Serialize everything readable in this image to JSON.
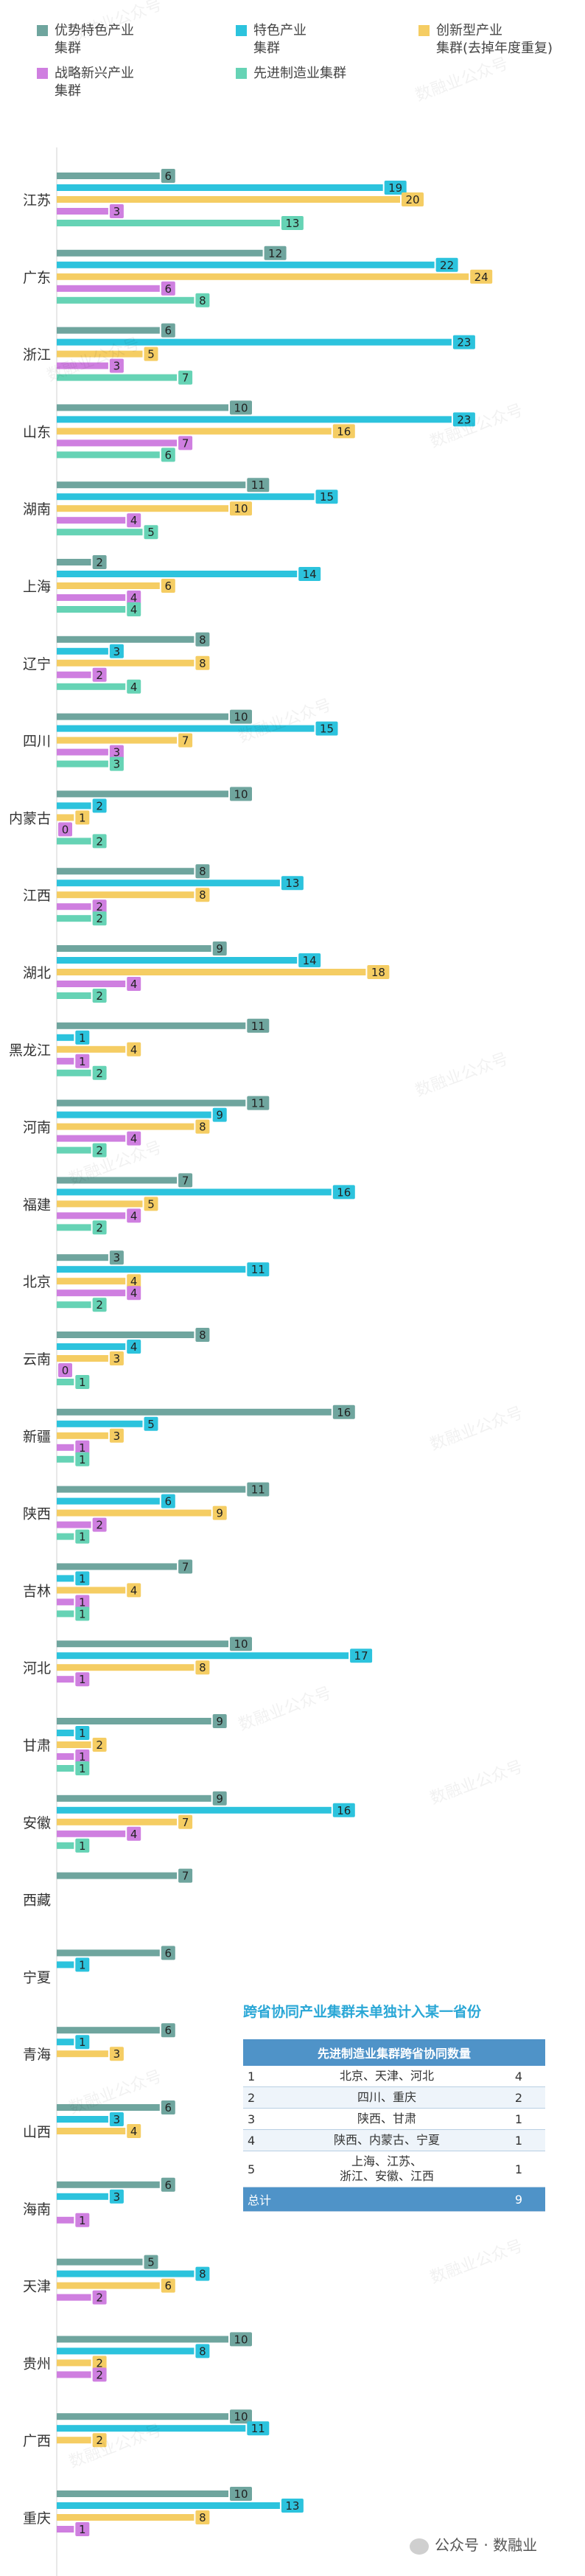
{
  "chart_data": {
    "type": "bar",
    "orientation": "horizontal",
    "legend": [
      {
        "key": "advantage",
        "lines": [
          "优势特色产业",
          "集群"
        ],
        "color": "#6fa59e"
      },
      {
        "key": "featured",
        "lines": [
          "特色产业",
          "集群"
        ],
        "color": "#2cc3dd"
      },
      {
        "key": "innovative",
        "lines": [
          "创新型产业",
          "集群(去掉年度重复)"
        ],
        "color": "#f5cd63"
      },
      {
        "key": "strategic",
        "lines": [
          "战略新兴产业",
          "集群"
        ],
        "color": "#cf7fe0"
      },
      {
        "key": "advanced",
        "lines": [
          "先进制造业集群"
        ],
        "color": "#66d3b5"
      }
    ],
    "categories": [
      "江苏",
      "广东",
      "浙江",
      "山东",
      "湖南",
      "上海",
      "辽宁",
      "四川",
      "内蒙古",
      "江西",
      "湖北",
      "黑龙江",
      "河南",
      "福建",
      "北京",
      "云南",
      "新疆",
      "陕西",
      "吉林",
      "河北",
      "甘肃",
      "安徽",
      "西藏",
      "宁夏",
      "青海",
      "山西",
      "海南",
      "天津",
      "贵州",
      "广西",
      "重庆"
    ],
    "series": [
      {
        "name": "优势特色产业集群",
        "color": "#6fa59e",
        "values": [
          6,
          12,
          6,
          10,
          11,
          2,
          8,
          10,
          10,
          8,
          9,
          11,
          11,
          7,
          3,
          8,
          16,
          11,
          7,
          10,
          9,
          9,
          7,
          6,
          6,
          6,
          6,
          5,
          10,
          10,
          10
        ]
      },
      {
        "name": "特色产业集群",
        "color": "#2cc3dd",
        "values": [
          19,
          22,
          23,
          23,
          15,
          14,
          3,
          15,
          2,
          13,
          14,
          1,
          9,
          16,
          11,
          4,
          5,
          6,
          1,
          17,
          1,
          16,
          null,
          1,
          1,
          3,
          3,
          8,
          8,
          11,
          13
        ]
      },
      {
        "name": "创新型产业集群(去掉年度重复)",
        "color": "#f5cd63",
        "values": [
          20,
          24,
          5,
          16,
          10,
          6,
          8,
          7,
          1,
          8,
          18,
          4,
          8,
          5,
          4,
          3,
          3,
          9,
          4,
          8,
          2,
          7,
          null,
          null,
          3,
          4,
          null,
          6,
          2,
          2,
          8
        ]
      },
      {
        "name": "战略新兴产业集群",
        "color": "#cf7fe0",
        "values": [
          3,
          6,
          3,
          7,
          4,
          4,
          2,
          3,
          0,
          2,
          4,
          1,
          4,
          4,
          4,
          0,
          1,
          2,
          1,
          1,
          1,
          4,
          null,
          null,
          null,
          null,
          1,
          2,
          2,
          null,
          1
        ]
      },
      {
        "name": "先进制造业集群",
        "color": "#66d3b5",
        "values": [
          13,
          8,
          7,
          6,
          5,
          4,
          4,
          3,
          2,
          2,
          2,
          2,
          2,
          2,
          2,
          1,
          1,
          1,
          1,
          null,
          1,
          1,
          null,
          null,
          null,
          null,
          null,
          null,
          null,
          null,
          null
        ]
      }
    ]
  },
  "note": "跨省协同产业集群未单独计入某一省份",
  "table": {
    "title": "先进制造业集群跨省协同数量",
    "rows": [
      {
        "no": "1",
        "provinces": [
          "北京、天津、河北"
        ],
        "count": "4"
      },
      {
        "no": "2",
        "provinces": [
          "四川、重庆"
        ],
        "count": "2"
      },
      {
        "no": "3",
        "provinces": [
          "陕西、甘肃"
        ],
        "count": "1"
      },
      {
        "no": "4",
        "provinces": [
          "陕西、内蒙古、宁夏"
        ],
        "count": "1"
      },
      {
        "no": "5",
        "provinces": [
          "上海、江苏、",
          "浙江、安徽、江西"
        ],
        "count": "1"
      }
    ],
    "total_label": "总计",
    "total_value": "9"
  },
  "watermark": "数融业公众号",
  "footer": "公众号 · 数融业"
}
